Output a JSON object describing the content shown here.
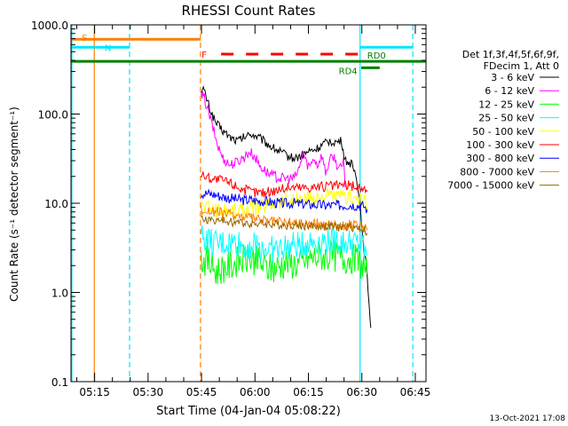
{
  "chart_data": {
    "type": "line",
    "title": "RHESSI Count Rates",
    "xlabel": "Start Time (04-Jan-04 05:08:22)",
    "ylabel": "Count Rate (s⁻¹ detector segment⁻¹)",
    "ylog": true,
    "xlim_minutes": [
      308.37,
      408
    ],
    "ylim": [
      0.1,
      1000
    ],
    "xticks": [
      {
        "minute": 315,
        "label": "05:15"
      },
      {
        "minute": 330,
        "label": "05:30"
      },
      {
        "minute": 345,
        "label": "05:45"
      },
      {
        "minute": 360,
        "label": "06:00"
      },
      {
        "minute": 375,
        "label": "06:15"
      },
      {
        "minute": 390,
        "label": "06:30"
      },
      {
        "minute": 405,
        "label": "06:45"
      }
    ],
    "yticks": [
      {
        "value": 1000,
        "label": "1000.0"
      },
      {
        "value": 100,
        "label": "100.0"
      },
      {
        "value": 10,
        "label": "10.0"
      },
      {
        "value": 1,
        "label": "1.0"
      },
      {
        "value": 0.1,
        "label": "0.1"
      }
    ],
    "legend_header": [
      "Det 1f,3f,4f,5f,6f,9f,",
      "FDecim 1, Att 0"
    ],
    "series": [
      {
        "name": "3 - 6 keV",
        "color": "#000000",
        "points": [
          [
            344.9,
            180
          ],
          [
            345.5,
            190
          ],
          [
            346.2,
            160
          ],
          [
            347.5,
            110
          ],
          [
            349,
            80
          ],
          [
            351,
            65
          ],
          [
            353,
            55
          ],
          [
            355,
            50
          ],
          [
            357,
            55
          ],
          [
            359,
            60
          ],
          [
            361,
            55
          ],
          [
            363,
            48
          ],
          [
            365,
            42
          ],
          [
            367,
            38
          ],
          [
            369,
            34
          ],
          [
            371,
            32
          ],
          [
            373,
            34
          ],
          [
            375,
            38
          ],
          [
            377,
            40
          ],
          [
            379,
            45
          ],
          [
            381,
            50
          ],
          [
            383,
            48
          ],
          [
            384.3,
            50
          ],
          [
            385.2,
            30
          ],
          [
            387,
            28
          ],
          [
            388.5,
            20
          ],
          [
            389.5,
            10
          ],
          [
            390.3,
            4
          ],
          [
            391.2,
            2.0
          ],
          [
            392,
            0.8
          ],
          [
            392.5,
            0.4
          ]
        ]
      },
      {
        "name": "6 - 12 keV",
        "color": "#ff00ff",
        "points": [
          [
            344.9,
            160
          ],
          [
            345.8,
            150
          ],
          [
            346.8,
            110
          ],
          [
            348,
            75
          ],
          [
            349.5,
            45
          ],
          [
            351,
            32
          ],
          [
            353,
            27
          ],
          [
            355,
            29
          ],
          [
            357,
            33
          ],
          [
            358.5,
            38
          ],
          [
            360,
            33
          ],
          [
            361.5,
            26
          ],
          [
            363.5,
            22
          ],
          [
            365.5,
            20
          ],
          [
            367.5,
            19
          ],
          [
            369.5,
            19
          ],
          [
            371,
            19
          ],
          [
            372.5,
            25
          ],
          [
            373.5,
            38
          ],
          [
            374.5,
            28
          ],
          [
            375.5,
            26
          ],
          [
            376.5,
            33
          ],
          [
            377.5,
            27
          ],
          [
            378.8,
            35
          ],
          [
            379.8,
            22
          ],
          [
            381,
            30
          ],
          [
            382,
            34
          ],
          [
            383.2,
            26
          ],
          [
            384.3,
            24
          ],
          [
            384.8,
            30
          ],
          [
            385.3,
            15
          ]
        ]
      },
      {
        "name": "12 - 25 keV",
        "color": "#00ff00",
        "points": [
          [
            344.9,
            2.4
          ],
          [
            347,
            2.2
          ],
          [
            349,
            1.7
          ],
          [
            351,
            1.9
          ],
          [
            353,
            2.0
          ],
          [
            355,
            2.2
          ],
          [
            357,
            2.3
          ],
          [
            359,
            2.4
          ],
          [
            361,
            2.2
          ],
          [
            363,
            1.9
          ],
          [
            365,
            1.8
          ],
          [
            367,
            2.0
          ],
          [
            369,
            2.2
          ],
          [
            371,
            2.1
          ],
          [
            373,
            2.1
          ],
          [
            375,
            2.4
          ],
          [
            377,
            2.5
          ],
          [
            379,
            2.6
          ],
          [
            381,
            2.5
          ],
          [
            383,
            2.6
          ],
          [
            385,
            2.4
          ],
          [
            387,
            2.5
          ],
          [
            389,
            2.2
          ],
          [
            390.5,
            2.0
          ],
          [
            391.5,
            1.6
          ]
        ]
      },
      {
        "name": "25 - 50 keV",
        "color": "#00ffff",
        "points": [
          [
            344.9,
            4.3
          ],
          [
            347,
            3.8
          ],
          [
            349,
            3.4
          ],
          [
            351,
            3.5
          ],
          [
            353,
            3.6
          ],
          [
            355,
            3.6
          ],
          [
            357,
            3.3
          ],
          [
            359,
            3.4
          ],
          [
            361,
            3.3
          ],
          [
            363,
            3.1
          ],
          [
            365,
            3.0
          ],
          [
            367,
            3.1
          ],
          [
            369,
            3.2
          ],
          [
            371,
            3.3
          ],
          [
            373,
            3.4
          ],
          [
            375,
            3.6
          ],
          [
            377,
            3.7
          ],
          [
            379,
            3.8
          ],
          [
            381,
            3.7
          ],
          [
            383,
            3.8
          ],
          [
            385,
            3.6
          ],
          [
            387,
            3.7
          ],
          [
            389,
            3.5
          ],
          [
            390.5,
            3.2
          ],
          [
            391.5,
            2.6
          ]
        ]
      },
      {
        "name": "50 - 100 keV",
        "color": "#ffff00",
        "points": [
          [
            344.9,
            9.5
          ],
          [
            347,
            9.0
          ],
          [
            349,
            8.5
          ],
          [
            351,
            8.3
          ],
          [
            353,
            8.4
          ],
          [
            355,
            8.2
          ],
          [
            357,
            8.6
          ],
          [
            359,
            8.8
          ],
          [
            361,
            9.0
          ],
          [
            363,
            9.5
          ],
          [
            365,
            10.0
          ],
          [
            367,
            10.5
          ],
          [
            369,
            10.8
          ],
          [
            371,
            11.0
          ],
          [
            373,
            10.8
          ],
          [
            375,
            11.2
          ],
          [
            377,
            11.5
          ],
          [
            379,
            11.8
          ],
          [
            381,
            12.0
          ],
          [
            383,
            11.8
          ],
          [
            385,
            11.5
          ],
          [
            387,
            11.8
          ],
          [
            389,
            11.2
          ],
          [
            390.5,
            10.5
          ],
          [
            391.5,
            9.0
          ]
        ]
      },
      {
        "name": "100 - 300 keV",
        "color": "#ff0000",
        "points": [
          [
            344.9,
            21
          ],
          [
            347,
            19.5
          ],
          [
            349,
            18.5
          ],
          [
            351,
            18.0
          ],
          [
            353,
            17.0
          ],
          [
            355,
            15.5
          ],
          [
            357,
            14.2
          ],
          [
            359,
            13.5
          ],
          [
            361,
            13.2
          ],
          [
            363,
            13.3
          ],
          [
            365,
            13.8
          ],
          [
            367,
            14.5
          ],
          [
            369,
            15.0
          ],
          [
            371,
            15.3
          ],
          [
            373,
            15.0
          ],
          [
            375,
            15.2
          ],
          [
            377,
            15.4
          ],
          [
            379,
            15.3
          ],
          [
            381,
            15.6
          ],
          [
            383,
            15.8
          ],
          [
            385,
            16.0
          ],
          [
            387,
            15.7
          ],
          [
            389,
            15.2
          ],
          [
            390.5,
            14.8
          ],
          [
            391.5,
            13.5
          ]
        ]
      },
      {
        "name": "300 - 800 keV",
        "color": "#0000ff",
        "points": [
          [
            344.9,
            13
          ],
          [
            347,
            12.8
          ],
          [
            349,
            12.4
          ],
          [
            351,
            11.8
          ],
          [
            353,
            11.4
          ],
          [
            355,
            11.0
          ],
          [
            357,
            10.8
          ],
          [
            359,
            10.9
          ],
          [
            361,
            10.6
          ],
          [
            363,
            10.5
          ],
          [
            365,
            10.2
          ],
          [
            367,
            10.0
          ],
          [
            369,
            9.9
          ],
          [
            371,
            10.0
          ],
          [
            373,
            9.8
          ],
          [
            375,
            9.7
          ],
          [
            377,
            9.6
          ],
          [
            379,
            9.5
          ],
          [
            381,
            9.4
          ],
          [
            383,
            9.5
          ],
          [
            385,
            9.5
          ],
          [
            387,
            9.6
          ],
          [
            389,
            9.4
          ],
          [
            390.5,
            9.3
          ],
          [
            391.5,
            8.5
          ]
        ]
      },
      {
        "name": "800 - 7000 keV",
        "color": "#ff8000",
        "points": [
          [
            344.9,
            8.4
          ],
          [
            347,
            8.2
          ],
          [
            349,
            8.0
          ],
          [
            351,
            7.7
          ],
          [
            353,
            7.5
          ],
          [
            355,
            7.3
          ],
          [
            357,
            7.0
          ],
          [
            359,
            6.8
          ],
          [
            361,
            6.6
          ],
          [
            363,
            6.4
          ],
          [
            365,
            6.3
          ],
          [
            367,
            6.2
          ],
          [
            369,
            6.1
          ],
          [
            371,
            6.0
          ],
          [
            373,
            6.0
          ],
          [
            375,
            5.9
          ],
          [
            377,
            5.9
          ],
          [
            379,
            5.8
          ],
          [
            381,
            5.8
          ],
          [
            383,
            5.8
          ],
          [
            385,
            5.7
          ],
          [
            387,
            5.7
          ],
          [
            389,
            5.6
          ],
          [
            390.5,
            5.5
          ],
          [
            391.5,
            5.0
          ]
        ]
      },
      {
        "name": "7000 - 15000 keV",
        "color": "#996600",
        "points": [
          [
            344.9,
            6.6
          ],
          [
            347,
            6.5
          ],
          [
            349,
            6.4
          ],
          [
            351,
            6.3
          ],
          [
            353,
            6.2
          ],
          [
            355,
            6.1
          ],
          [
            357,
            6.0
          ],
          [
            359,
            6.0
          ],
          [
            361,
            5.9
          ],
          [
            363,
            5.9
          ],
          [
            365,
            5.8
          ],
          [
            367,
            5.8
          ],
          [
            369,
            5.7
          ],
          [
            371,
            5.7
          ],
          [
            373,
            5.6
          ],
          [
            375,
            5.6
          ],
          [
            377,
            5.5
          ],
          [
            379,
            5.5
          ],
          [
            381,
            5.5
          ],
          [
            383,
            5.4
          ],
          [
            385,
            5.4
          ],
          [
            387,
            5.4
          ],
          [
            389,
            5.3
          ],
          [
            390.5,
            5.2
          ],
          [
            391.5,
            4.6
          ]
        ]
      }
    ],
    "vlines": [
      {
        "minute": 308.6,
        "color": "#00e5ff",
        "style": "solid"
      },
      {
        "minute": 314.9,
        "color": "#ff7f00",
        "style": "solid"
      },
      {
        "minute": 324.8,
        "color": "#00e5ff",
        "style": "dashed"
      },
      {
        "minute": 344.7,
        "color": "#ff7f00",
        "style": "dashed"
      },
      {
        "minute": 389.5,
        "color": "#00e5ff",
        "style": "solid"
      },
      {
        "minute": 404.3,
        "color": "#00e5ff",
        "style": "dashed"
      }
    ],
    "flag_bars": [
      {
        "label": "S",
        "color": "#ff7f00",
        "start": 308.37,
        "end": 344.7,
        "level": 690,
        "dashed": false
      },
      {
        "label": "N",
        "color": "#00e5ff",
        "start": 308.37,
        "end": 324.8,
        "level": 560,
        "dashed": false
      },
      {
        "label": "N",
        "color": "#00e5ff",
        "start": 389.5,
        "end": 404.3,
        "level": 560,
        "dashed": false,
        "unlabeled": true
      },
      {
        "label": "F",
        "color": "#ff0000",
        "start": 350.5,
        "end": 389.5,
        "level": 470,
        "dashed": true
      },
      {
        "label": "RD0",
        "color": "#008000",
        "start": 308.37,
        "end": 408,
        "level": 390,
        "dashed": false,
        "label_at": 391.5
      },
      {
        "label": "RD4",
        "color": "#008000",
        "start": 389.8,
        "end": 395.0,
        "level": 330,
        "dashed": false,
        "label_at": 383.5
      }
    ],
    "timestamp": "13-Oct-2021 17:08"
  }
}
